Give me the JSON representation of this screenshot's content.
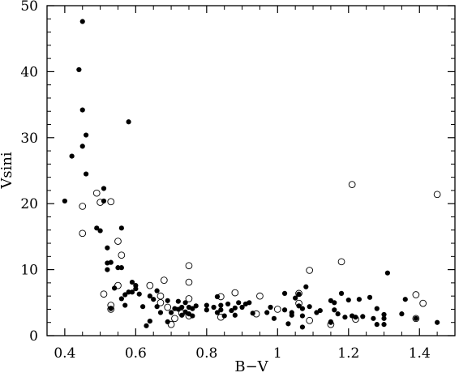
{
  "chart_data": {
    "type": "scatter",
    "title": "",
    "xlabel": "B−V",
    "ylabel": "Vsini",
    "xlim": [
      0.35,
      1.5
    ],
    "ylim": [
      0,
      50
    ],
    "grid": false,
    "x_ticks": [
      0.4,
      0.6,
      0.8,
      1.0,
      1.2,
      1.4
    ],
    "x_tick_labels": [
      "0.4",
      "0.6",
      "0.8",
      "1",
      "1.2",
      "1.4"
    ],
    "y_ticks": [
      0,
      10,
      20,
      30,
      40,
      50
    ],
    "y_tick_labels": [
      "0",
      "10",
      "20",
      "30",
      "40",
      "50"
    ],
    "series": [
      {
        "marker": "filled-circle",
        "color": "#000000",
        "points": [
          [
            0.4,
            20.4
          ],
          [
            0.42,
            27.2
          ],
          [
            0.44,
            40.3
          ],
          [
            0.45,
            47.6
          ],
          [
            0.45,
            34.2
          ],
          [
            0.45,
            28.7
          ],
          [
            0.46,
            30.4
          ],
          [
            0.46,
            24.5
          ],
          [
            0.49,
            16.3
          ],
          [
            0.5,
            15.9
          ],
          [
            0.51,
            22.3
          ],
          [
            0.51,
            20.4
          ],
          [
            0.52,
            13.3
          ],
          [
            0.52,
            11.0
          ],
          [
            0.52,
            10.0
          ],
          [
            0.53,
            11.1
          ],
          [
            0.53,
            4.1
          ],
          [
            0.54,
            7.2
          ],
          [
            0.55,
            10.3
          ],
          [
            0.56,
            10.3
          ],
          [
            0.56,
            16.3
          ],
          [
            0.56,
            5.6
          ],
          [
            0.57,
            6.2
          ],
          [
            0.57,
            4.6
          ],
          [
            0.58,
            6.6
          ],
          [
            0.58,
            32.4
          ],
          [
            0.59,
            8.1
          ],
          [
            0.59,
            6.6
          ],
          [
            0.6,
            7.6
          ],
          [
            0.6,
            7.1
          ],
          [
            0.61,
            6.3
          ],
          [
            0.62,
            4.4
          ],
          [
            0.63,
            1.5
          ],
          [
            0.64,
            2.2
          ],
          [
            0.64,
            6.0
          ],
          [
            0.65,
            5.5
          ],
          [
            0.66,
            6.8
          ],
          [
            0.66,
            4.4
          ],
          [
            0.67,
            3.5
          ],
          [
            0.69,
            5.3
          ],
          [
            0.69,
            2.1
          ],
          [
            0.7,
            3.5
          ],
          [
            0.71,
            4.1
          ],
          [
            0.72,
            5.2
          ],
          [
            0.72,
            4.0
          ],
          [
            0.73,
            3.1
          ],
          [
            0.73,
            4.3
          ],
          [
            0.74,
            5.0
          ],
          [
            0.74,
            3.6
          ],
          [
            0.75,
            4.3
          ],
          [
            0.75,
            3.3
          ],
          [
            0.76,
            4.1
          ],
          [
            0.76,
            3.0
          ],
          [
            0.77,
            4.5
          ],
          [
            0.8,
            4.6
          ],
          [
            0.8,
            3.9
          ],
          [
            0.82,
            4.3
          ],
          [
            0.83,
            5.9
          ],
          [
            0.83,
            3.5
          ],
          [
            0.84,
            4.6
          ],
          [
            0.84,
            3.9
          ],
          [
            0.85,
            3.0
          ],
          [
            0.86,
            4.8
          ],
          [
            0.87,
            3.8
          ],
          [
            0.88,
            4.2
          ],
          [
            0.88,
            3.1
          ],
          [
            0.89,
            5.0
          ],
          [
            0.9,
            4.3
          ],
          [
            0.91,
            4.8
          ],
          [
            0.92,
            5.0
          ],
          [
            0.93,
            3.4
          ],
          [
            0.97,
            3.5
          ],
          [
            0.98,
            4.3
          ],
          [
            0.99,
            2.6
          ],
          [
            1.02,
            6.4
          ],
          [
            1.02,
            3.9
          ],
          [
            1.03,
            1.8
          ],
          [
            1.04,
            3.5
          ],
          [
            1.04,
            3.1
          ],
          [
            1.05,
            5.7
          ],
          [
            1.06,
            4.5
          ],
          [
            1.06,
            6.3
          ],
          [
            1.07,
            4.1
          ],
          [
            1.07,
            3.0
          ],
          [
            1.07,
            1.3
          ],
          [
            1.08,
            7.4
          ],
          [
            1.09,
            4.4
          ],
          [
            1.11,
            3.5
          ],
          [
            1.12,
            3.8
          ],
          [
            1.15,
            5.3
          ],
          [
            1.15,
            2.1
          ],
          [
            1.15,
            2.0
          ],
          [
            1.16,
            5.0
          ],
          [
            1.16,
            3.9
          ],
          [
            1.17,
            3.3
          ],
          [
            1.18,
            6.4
          ],
          [
            1.19,
            2.8
          ],
          [
            1.2,
            5.4
          ],
          [
            1.21,
            3.0
          ],
          [
            1.22,
            2.8
          ],
          [
            1.23,
            5.5
          ],
          [
            1.24,
            2.9
          ],
          [
            1.26,
            5.8
          ],
          [
            1.27,
            2.6
          ],
          [
            1.28,
            4.1
          ],
          [
            1.28,
            1.7
          ],
          [
            1.3,
            3.2
          ],
          [
            1.3,
            2.6
          ],
          [
            1.3,
            1.7
          ],
          [
            1.31,
            9.5
          ],
          [
            1.35,
            3.3
          ],
          [
            1.36,
            5.5
          ],
          [
            1.39,
            2.6
          ],
          [
            1.45,
            2.0
          ]
        ]
      },
      {
        "marker": "open-circle",
        "color": "#000000",
        "points": [
          [
            0.45,
            19.6
          ],
          [
            0.45,
            15.5
          ],
          [
            0.49,
            21.6
          ],
          [
            0.5,
            20.2
          ],
          [
            0.51,
            6.3
          ],
          [
            0.53,
            20.3
          ],
          [
            0.53,
            4.6
          ],
          [
            0.53,
            4.0
          ],
          [
            0.55,
            14.3
          ],
          [
            0.55,
            7.6
          ],
          [
            0.56,
            12.2
          ],
          [
            0.64,
            7.6
          ],
          [
            0.67,
            6.0
          ],
          [
            0.67,
            5.0
          ],
          [
            0.68,
            8.4
          ],
          [
            0.69,
            4.3
          ],
          [
            0.7,
            1.7
          ],
          [
            0.71,
            2.6
          ],
          [
            0.73,
            3.4
          ],
          [
            0.75,
            10.6
          ],
          [
            0.75,
            8.1
          ],
          [
            0.75,
            5.6
          ],
          [
            0.75,
            3.0
          ],
          [
            0.84,
            5.9
          ],
          [
            0.84,
            2.8
          ],
          [
            0.88,
            6.5
          ],
          [
            0.94,
            3.3
          ],
          [
            0.95,
            6.0
          ],
          [
            1.0,
            4.0
          ],
          [
            1.06,
            6.4
          ],
          [
            1.06,
            4.9
          ],
          [
            1.09,
            9.9
          ],
          [
            1.09,
            2.3
          ],
          [
            1.15,
            1.7
          ],
          [
            1.18,
            11.2
          ],
          [
            1.21,
            22.9
          ],
          [
            1.22,
            2.5
          ],
          [
            1.39,
            6.2
          ],
          [
            1.39,
            2.6
          ],
          [
            1.41,
            4.9
          ],
          [
            1.45,
            21.4
          ]
        ]
      }
    ]
  }
}
